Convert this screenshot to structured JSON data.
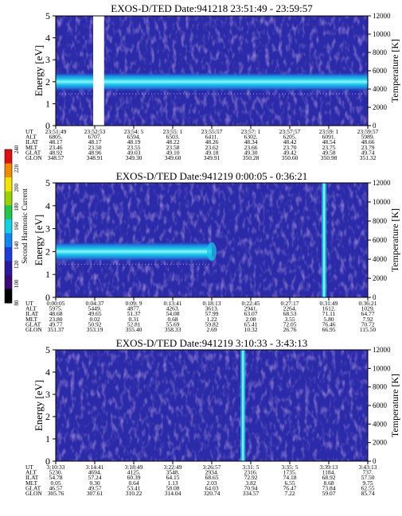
{
  "chart_data": [
    {
      "type": "heatmap",
      "title": "EXOS-D/TED   Date:941218   23:51:49 - 23:59:57",
      "ylabel": "Energy [eV]",
      "y2label": "Temperature [K]",
      "ylim": [
        0,
        5
      ],
      "y2lim": [
        0,
        12000
      ],
      "yticks": [
        "0",
        "1",
        "2",
        "3",
        "4",
        "5"
      ],
      "y2ticks": [
        "0",
        "2000",
        "4000",
        "6000",
        "8000",
        "10000",
        "12000"
      ],
      "band_center_ev": 2.0,
      "data_gap_fraction": [
        0.12,
        0.155
      ],
      "orbit_table": {
        "row_labels": [
          "UT",
          "ALT",
          "ILAT",
          "MLT",
          "GLAT",
          "GLON"
        ],
        "columns": [
          [
            "23:51:49",
            "6805.",
            "48.17",
            "23.46",
            "48.92",
            "348.57"
          ],
          [
            "23:52:53",
            "6707.",
            "48.17",
            "23.50",
            "48.96",
            "348.91"
          ],
          [
            "23:54: 5",
            "6594.",
            "48.19",
            "23.55",
            "49.03",
            "349.30"
          ],
          [
            "23:55: 1",
            "6503.",
            "48.22",
            "23.58",
            "49.10",
            "349.60"
          ],
          [
            "23:55:57",
            "6411.",
            "48.26",
            "23.62",
            "49.18",
            "349.91"
          ],
          [
            "23:57: 1",
            "6302.",
            "48.34",
            "23.66",
            "49.30",
            "350.28"
          ],
          [
            "23:57:57",
            "6205.",
            "48.42",
            "23.70",
            "49.42",
            "350.60"
          ],
          [
            "23:59: 1",
            "6091.",
            "48.54",
            "23.75",
            "49.58",
            "350.98"
          ],
          [
            "23:59:57",
            "5989.",
            "48.66",
            "23.79",
            "49.74",
            "351.32"
          ]
        ]
      }
    },
    {
      "type": "heatmap",
      "title": "EXOS-D/TED   Date:941219   0:00:05 - 0:36:21",
      "ylabel": "Energy [eV]",
      "y2label": "Temperature [K]",
      "ylim": [
        0,
        5
      ],
      "y2lim": [
        0,
        12000
      ],
      "yticks": [
        "0",
        "1",
        "2",
        "3",
        "4",
        "5"
      ],
      "y2ticks": [
        "0",
        "2000",
        "4000",
        "6000",
        "8000",
        "10000",
        "12000"
      ],
      "band_center_ev": 2.0,
      "band_end_fraction": 0.5,
      "vertical_spike_fraction": 0.86,
      "orbit_table": {
        "row_labels": [
          "UT",
          "ALT",
          "ILAT",
          "MLT",
          "GLAT",
          "GLON"
        ],
        "columns": [
          [
            "0:00:05",
            "5975.",
            "48.68",
            "23.80",
            "49.77",
            "351.37"
          ],
          [
            "0:04:37",
            "5449.",
            "49.65",
            "0.02",
            "50.92",
            "353.19"
          ],
          [
            "0:09: 9",
            "4877.",
            "51.37",
            "0.31",
            "52.81",
            "355.40"
          ],
          [
            "0:13:41",
            "4263.",
            "54.08",
            "0.68",
            "55.69",
            "358.33"
          ],
          [
            "0:18:13",
            "3613.",
            "57.99",
            "1.22",
            "59.82",
            "2.69"
          ],
          [
            "0:22:45",
            "2941.",
            "63.07",
            "2.08",
            "65.41",
            "10.32"
          ],
          [
            "0:27:17",
            "2264.",
            "68.53",
            "3.55",
            "72.05",
            "26.76"
          ],
          [
            "0:31:49",
            "1612.",
            "71.11",
            "5.80",
            "76.46",
            "66.95"
          ],
          [
            "0:36:21",
            "1029.",
            "64.77",
            "7.92",
            "70.72",
            "115.50"
          ]
        ]
      }
    },
    {
      "type": "heatmap",
      "title": "EXOS-D/TED   Date:941219   3:10:33 - 3:43:13",
      "ylabel": "Energy [eV]",
      "y2label": "Temperature [K]",
      "ylim": [
        0,
        5
      ],
      "y2lim": [
        0,
        12000
      ],
      "yticks": [
        "0",
        "1",
        "2",
        "3",
        "4",
        "5"
      ],
      "y2ticks": [
        "0",
        "2000",
        "4000",
        "6000",
        "8000",
        "10000",
        "12000"
      ],
      "vertical_spike_fraction": 0.6,
      "orbit_table": {
        "row_labels": [
          "UT",
          "ALT",
          "ILAT",
          "MLT",
          "GLAT",
          "GLON"
        ],
        "columns": [
          [
            "3:10:33",
            "5230.",
            "54.78",
            "0.05",
            "46.57",
            "305.76"
          ],
          [
            "3:14:41",
            "4694.",
            "57.24",
            "0.30",
            "49.57",
            "307.61"
          ],
          [
            "3:18:49",
            "4125.",
            "60.39",
            "0.64",
            "53.41",
            "310.22"
          ],
          [
            "3:22:49",
            "3548.",
            "64.15",
            "1.13",
            "58.08",
            "314.04"
          ],
          [
            "3:26:57",
            "2934.",
            "68.65",
            "2.03",
            "64.03",
            "320.74"
          ],
          [
            "3:31: 5",
            "2316.",
            "72.92",
            "3.82",
            "70.94",
            "334.57"
          ],
          [
            "3:35: 5",
            "1735.",
            "74.18",
            "6.55",
            "76.47",
            "7.22"
          ],
          [
            "3:39:13",
            "1184.",
            "68.92",
            "8.68",
            "73.84",
            "59.07"
          ],
          [
            "3:43:13",
            "737.",
            "57.50",
            "9.75",
            "62.55",
            "85.74"
          ]
        ]
      }
    }
  ],
  "colorbar": {
    "label": "Second Harmonic Current",
    "ticks": [
      "80",
      "100",
      "120",
      "140",
      "160",
      "180",
      "200",
      "220",
      "240"
    ],
    "colors": [
      "#000000",
      "#3a0a78",
      "#2a1aa0",
      "#1e3cd8",
      "#0e88f0",
      "#12d0e6",
      "#20c84a",
      "#9ad400",
      "#f2e400",
      "#f08a00",
      "#e01010"
    ]
  },
  "colors": {
    "background": "#2b2aa8",
    "texture": "#4c3aa8",
    "band_core": "#8cf6ff",
    "band_mid": "#18c8e8",
    "band_edge": "#1f7ae0"
  }
}
